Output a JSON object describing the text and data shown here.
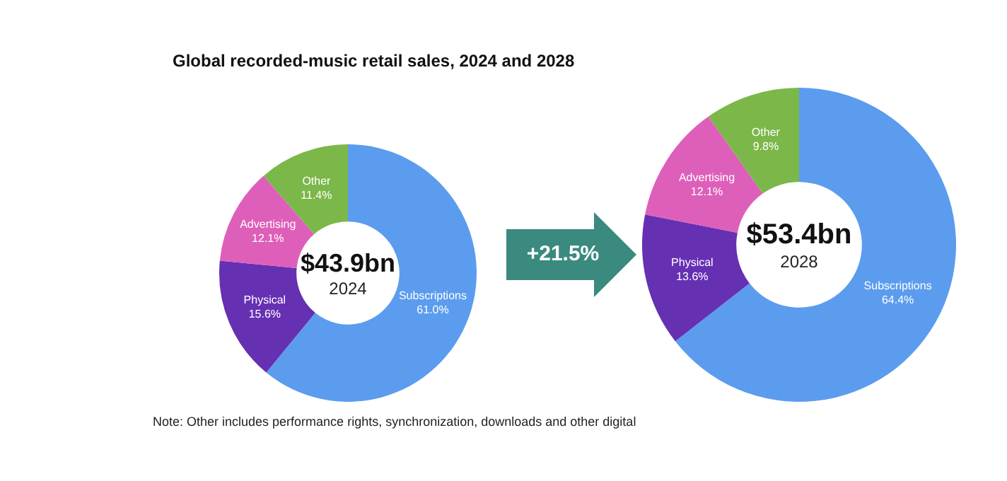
{
  "chart_data": [
    {
      "type": "donut",
      "title": "Global recorded-music retail sales, 2024 and 2028",
      "categories": [
        "Subscriptions",
        "Physical",
        "Advertising",
        "Other"
      ],
      "values": [
        61.0,
        15.6,
        12.1,
        11.4
      ],
      "value_labels": [
        "61.0%",
        "15.6%",
        "12.1%",
        "11.4%"
      ],
      "colors": [
        "#5b9cee",
        "#6630b3",
        "#de5fb9",
        "#7cb74a"
      ],
      "annotations": [
        "$43.9bn",
        "2024",
        "Note: Other includes performance rights, synchronization, downloads and other digital"
      ]
    },
    {
      "type": "donut",
      "categories": [
        "Subscriptions",
        "Physical",
        "Advertising",
        "Other"
      ],
      "values": [
        64.4,
        13.6,
        12.1,
        9.8
      ],
      "value_labels": [
        "64.4%",
        "13.6%",
        "12.1%",
        "9.8%"
      ],
      "colors": [
        "#5b9cee",
        "#6630b3",
        "#de5fb9",
        "#7cb74a"
      ],
      "annotations": [
        "$53.4bn",
        "2028",
        "+21.5%"
      ]
    }
  ]
}
